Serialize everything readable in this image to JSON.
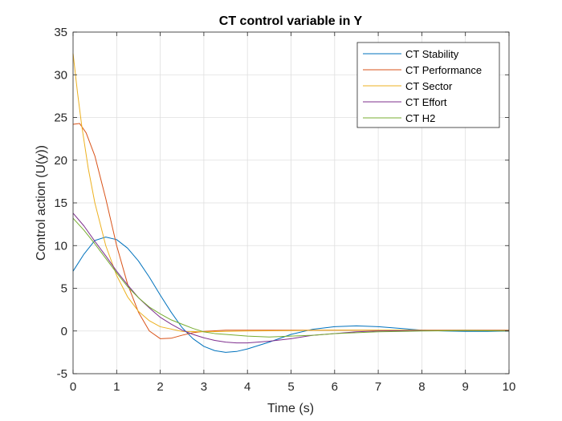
{
  "chart_data": {
    "type": "line",
    "title": "CT control variable in Y",
    "xlabel": "Time (s)",
    "ylabel": "Control action (U(y))",
    "xlim": [
      0,
      10
    ],
    "ylim": [
      -5,
      35
    ],
    "xticks": [
      "0",
      "1",
      "2",
      "3",
      "4",
      "5",
      "6",
      "7",
      "8",
      "9",
      "10"
    ],
    "yticks": [
      "-5",
      "0",
      "5",
      "10",
      "15",
      "20",
      "25",
      "30",
      "35"
    ],
    "grid": true,
    "legend_position": "top-right",
    "series": [
      {
        "name": "CT Stability",
        "color": "#0072BD",
        "points": [
          [
            0,
            7.0
          ],
          [
            0.25,
            9.0
          ],
          [
            0.5,
            10.6
          ],
          [
            0.75,
            11.0
          ],
          [
            1.0,
            10.7
          ],
          [
            1.25,
            9.7
          ],
          [
            1.5,
            8.2
          ],
          [
            1.75,
            6.3
          ],
          [
            2.0,
            4.2
          ],
          [
            2.25,
            2.2
          ],
          [
            2.5,
            0.4
          ],
          [
            2.75,
            -0.9
          ],
          [
            3.0,
            -1.8
          ],
          [
            3.25,
            -2.3
          ],
          [
            3.5,
            -2.5
          ],
          [
            3.75,
            -2.4
          ],
          [
            4.0,
            -2.1
          ],
          [
            4.5,
            -1.3
          ],
          [
            5.0,
            -0.4
          ],
          [
            5.5,
            0.2
          ],
          [
            6.0,
            0.5
          ],
          [
            6.5,
            0.6
          ],
          [
            7.0,
            0.5
          ],
          [
            7.5,
            0.3
          ],
          [
            8.0,
            0.1
          ],
          [
            8.5,
            0.0
          ],
          [
            9.0,
            -0.05
          ],
          [
            9.5,
            -0.05
          ],
          [
            10.0,
            0.0
          ]
        ]
      },
      {
        "name": "CT Performance",
        "color": "#D95319",
        "points": [
          [
            0,
            24.2
          ],
          [
            0.15,
            24.3
          ],
          [
            0.3,
            23.2
          ],
          [
            0.5,
            20.5
          ],
          [
            0.75,
            15.5
          ],
          [
            1.0,
            10.0
          ],
          [
            1.25,
            5.5
          ],
          [
            1.5,
            2.2
          ],
          [
            1.75,
            0.0
          ],
          [
            2.0,
            -0.9
          ],
          [
            2.25,
            -0.85
          ],
          [
            2.5,
            -0.5
          ],
          [
            2.75,
            -0.2
          ],
          [
            3.0,
            -0.05
          ],
          [
            3.5,
            0.1
          ],
          [
            4.0,
            0.1
          ],
          [
            5.0,
            0.1
          ],
          [
            6.0,
            0.1
          ],
          [
            7.0,
            0.1
          ],
          [
            8.0,
            0.1
          ],
          [
            9.0,
            0.1
          ],
          [
            10.0,
            0.1
          ]
        ]
      },
      {
        "name": "CT Sector",
        "color": "#EDB120",
        "points": [
          [
            0,
            32.5
          ],
          [
            0.1,
            28.0
          ],
          [
            0.2,
            24.0
          ],
          [
            0.35,
            19.0
          ],
          [
            0.5,
            15.0
          ],
          [
            0.75,
            10.0
          ],
          [
            1.0,
            6.5
          ],
          [
            1.25,
            4.0
          ],
          [
            1.5,
            2.3
          ],
          [
            1.75,
            1.2
          ],
          [
            2.0,
            0.5
          ],
          [
            2.5,
            -0.05
          ],
          [
            3.0,
            -0.1
          ],
          [
            4.0,
            0.0
          ],
          [
            5.0,
            0.05
          ],
          [
            6.0,
            0.1
          ],
          [
            7.0,
            0.1
          ],
          [
            8.0,
            0.1
          ],
          [
            9.0,
            0.1
          ],
          [
            10.0,
            0.1
          ]
        ]
      },
      {
        "name": "CT Effort",
        "color": "#7E2F8E",
        "points": [
          [
            0,
            13.8
          ],
          [
            0.25,
            12.3
          ],
          [
            0.5,
            10.5
          ],
          [
            0.75,
            8.8
          ],
          [
            1.0,
            7.0
          ],
          [
            1.25,
            5.4
          ],
          [
            1.5,
            3.9
          ],
          [
            1.75,
            2.7
          ],
          [
            2.0,
            1.6
          ],
          [
            2.25,
            0.8
          ],
          [
            2.5,
            0.1
          ],
          [
            2.75,
            -0.4
          ],
          [
            3.0,
            -0.8
          ],
          [
            3.25,
            -1.1
          ],
          [
            3.5,
            -1.3
          ],
          [
            3.75,
            -1.4
          ],
          [
            4.0,
            -1.4
          ],
          [
            4.5,
            -1.2
          ],
          [
            5.0,
            -0.9
          ],
          [
            5.5,
            -0.5
          ],
          [
            6.0,
            -0.3
          ],
          [
            6.5,
            -0.1
          ],
          [
            7.0,
            0.0
          ],
          [
            8.0,
            0.05
          ],
          [
            9.0,
            0.05
          ],
          [
            10.0,
            0.05
          ]
        ]
      },
      {
        "name": "CT H2",
        "color": "#77AC30",
        "points": [
          [
            0,
            13.2
          ],
          [
            0.25,
            11.8
          ],
          [
            0.5,
            10.2
          ],
          [
            0.75,
            8.5
          ],
          [
            1.0,
            6.8
          ],
          [
            1.25,
            5.2
          ],
          [
            1.5,
            3.9
          ],
          [
            1.75,
            2.8
          ],
          [
            2.0,
            2.0
          ],
          [
            2.25,
            1.3
          ],
          [
            2.5,
            0.8
          ],
          [
            2.75,
            0.3
          ],
          [
            3.0,
            -0.1
          ],
          [
            3.25,
            -0.3
          ],
          [
            3.5,
            -0.4
          ],
          [
            4.0,
            -0.6
          ],
          [
            4.5,
            -0.7
          ],
          [
            5.0,
            -0.6
          ],
          [
            5.5,
            -0.5
          ],
          [
            6.0,
            -0.3
          ],
          [
            6.5,
            -0.2
          ],
          [
            7.0,
            -0.1
          ],
          [
            8.0,
            0.0
          ],
          [
            9.0,
            0.05
          ],
          [
            10.0,
            0.0
          ]
        ]
      }
    ]
  }
}
